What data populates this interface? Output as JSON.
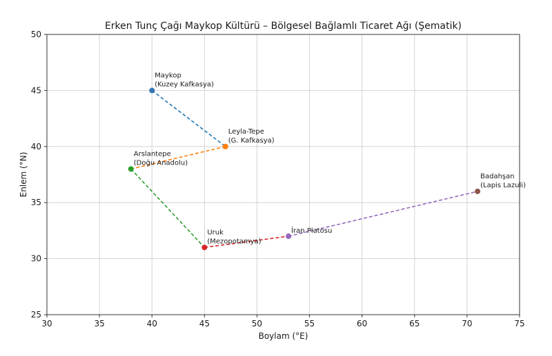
{
  "chart_data": {
    "type": "scatter",
    "title": "Erken Tunç Çağı Maykop Kültürü – Bölgesel Bağlamlı Ticaret Ağı (Şematik)",
    "xlabel": "Boylam (°E)",
    "ylabel": "Enlem (°N)",
    "xlim": [
      30,
      75
    ],
    "ylim": [
      25,
      50
    ],
    "xticks": [
      30,
      35,
      40,
      45,
      50,
      55,
      60,
      65,
      70,
      75
    ],
    "yticks": [
      25,
      30,
      35,
      40,
      45,
      50
    ],
    "grid": true,
    "points": [
      {
        "x": 40,
        "y": 45,
        "label": [
          "Maykop",
          "(Kuzey Kafkasya)"
        ],
        "color": "#3477b5"
      },
      {
        "x": 47,
        "y": 40,
        "label": [
          "Leyla-Tepe",
          "(G. Kafkasya)"
        ],
        "color": "#ff7f0e"
      },
      {
        "x": 38,
        "y": 38,
        "label": [
          "Arslantepe",
          "(Doğu Anadolu)"
        ],
        "color": "#2ca02c"
      },
      {
        "x": 45,
        "y": 31,
        "label": [
          "Uruk",
          "(Mezopotamya)"
        ],
        "color": "#d62728"
      },
      {
        "x": 53,
        "y": 32,
        "label": [
          "İran Platosu"
        ],
        "color": "#9467bd"
      },
      {
        "x": 71,
        "y": 36,
        "label": [
          "Badahşan",
          "(Lapis Lazuli)"
        ],
        "color": "#8c564b"
      }
    ],
    "segments": [
      {
        "from": 0,
        "to": 1,
        "color": "#1f77b4"
      },
      {
        "from": 1,
        "to": 2,
        "color": "#ff7f0e"
      },
      {
        "from": 2,
        "to": 3,
        "color": "#2ca02c"
      },
      {
        "from": 3,
        "to": 4,
        "color": "#d62728"
      },
      {
        "from": 4,
        "to": 5,
        "color": "#9467bd"
      }
    ]
  }
}
